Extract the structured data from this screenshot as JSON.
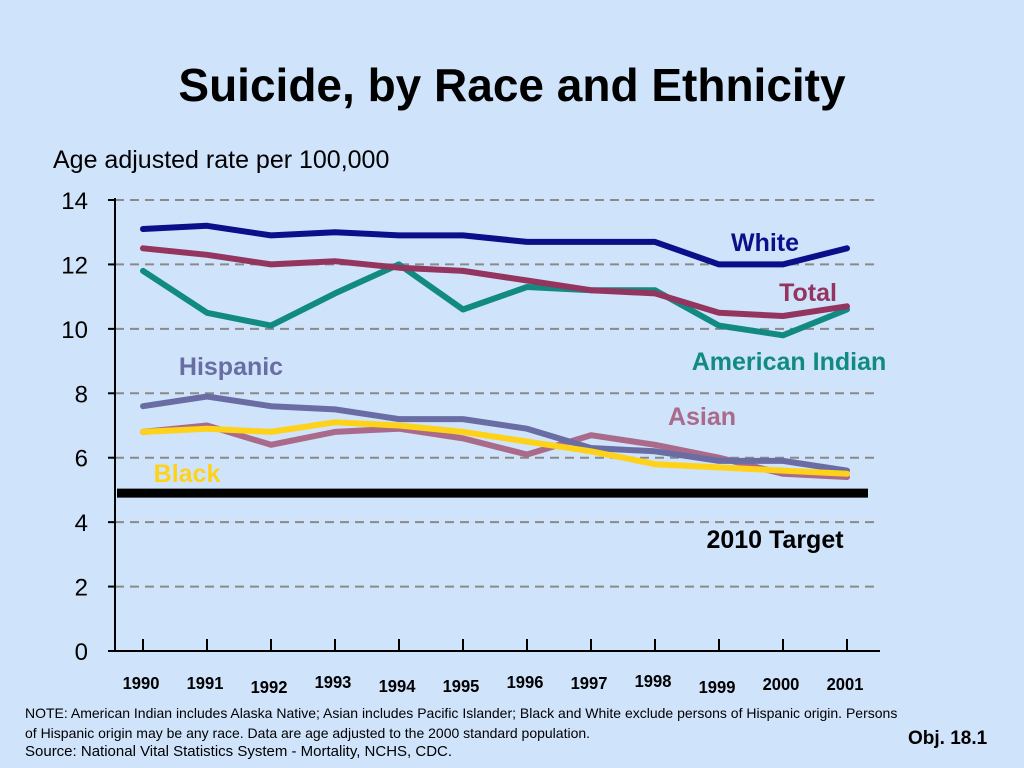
{
  "slide": {
    "title": "Suicide, by Race and Ethnicity",
    "note": "NOTE: American Indian includes Alaska Native; Asian includes Pacific Islander; Black and White exclude persons of Hispanic origin. Persons of Hispanic origin may be any race. Data are age adjusted to the 2000 standard population.",
    "source": "Source: National Vital Statistics System - Mortality, NCHS, CDC.",
    "objective": "Obj. 18.1"
  },
  "chart_data": {
    "type": "line",
    "title": "Suicide, by Race and Ethnicity",
    "ylabel": "Age adjusted rate per 100,000",
    "xlabel": "",
    "ylim": [
      0,
      14
    ],
    "yticks": [
      "0",
      "2",
      "4",
      "6",
      "8",
      "10",
      "12",
      "14"
    ],
    "grid": "horizontal dashed",
    "x": [
      "1990",
      "1991",
      "1992",
      "1993",
      "1994",
      "1995",
      "1996",
      "1997",
      "1998",
      "1999",
      "2000",
      "2001"
    ],
    "series": [
      {
        "name": "White",
        "color": "#0b0f8a",
        "values": [
          13.1,
          13.2,
          12.9,
          13.0,
          12.9,
          12.9,
          12.7,
          12.7,
          12.7,
          12.0,
          12.0,
          12.5
        ]
      },
      {
        "name": "Total",
        "color": "#943560",
        "values": [
          12.5,
          12.3,
          12.0,
          12.1,
          11.9,
          11.8,
          11.5,
          11.2,
          11.1,
          10.5,
          10.4,
          10.7
        ]
      },
      {
        "name": "American Indian",
        "color": "#118a82",
        "values": [
          11.8,
          10.5,
          10.1,
          11.1,
          12.0,
          10.6,
          11.3,
          11.2,
          11.2,
          10.1,
          9.8,
          10.6
        ]
      },
      {
        "name": "Hispanic",
        "color": "#6a6da3",
        "values": [
          7.6,
          7.9,
          7.6,
          7.5,
          7.2,
          7.2,
          6.9,
          6.3,
          6.2,
          5.9,
          5.9,
          5.6
        ]
      },
      {
        "name": "Asian",
        "color": "#aa6a8a",
        "values": [
          6.8,
          7.0,
          6.4,
          6.8,
          6.9,
          6.6,
          6.1,
          6.7,
          6.4,
          6.0,
          5.5,
          5.4
        ]
      },
      {
        "name": "Black",
        "color": "#ffd21a",
        "values": [
          6.8,
          6.9,
          6.8,
          7.1,
          7.0,
          6.8,
          6.5,
          6.2,
          5.8,
          5.7,
          5.6,
          5.5
        ]
      }
    ],
    "target": {
      "label": "2010 Target",
      "value": 4.9,
      "color": "#000000"
    }
  }
}
